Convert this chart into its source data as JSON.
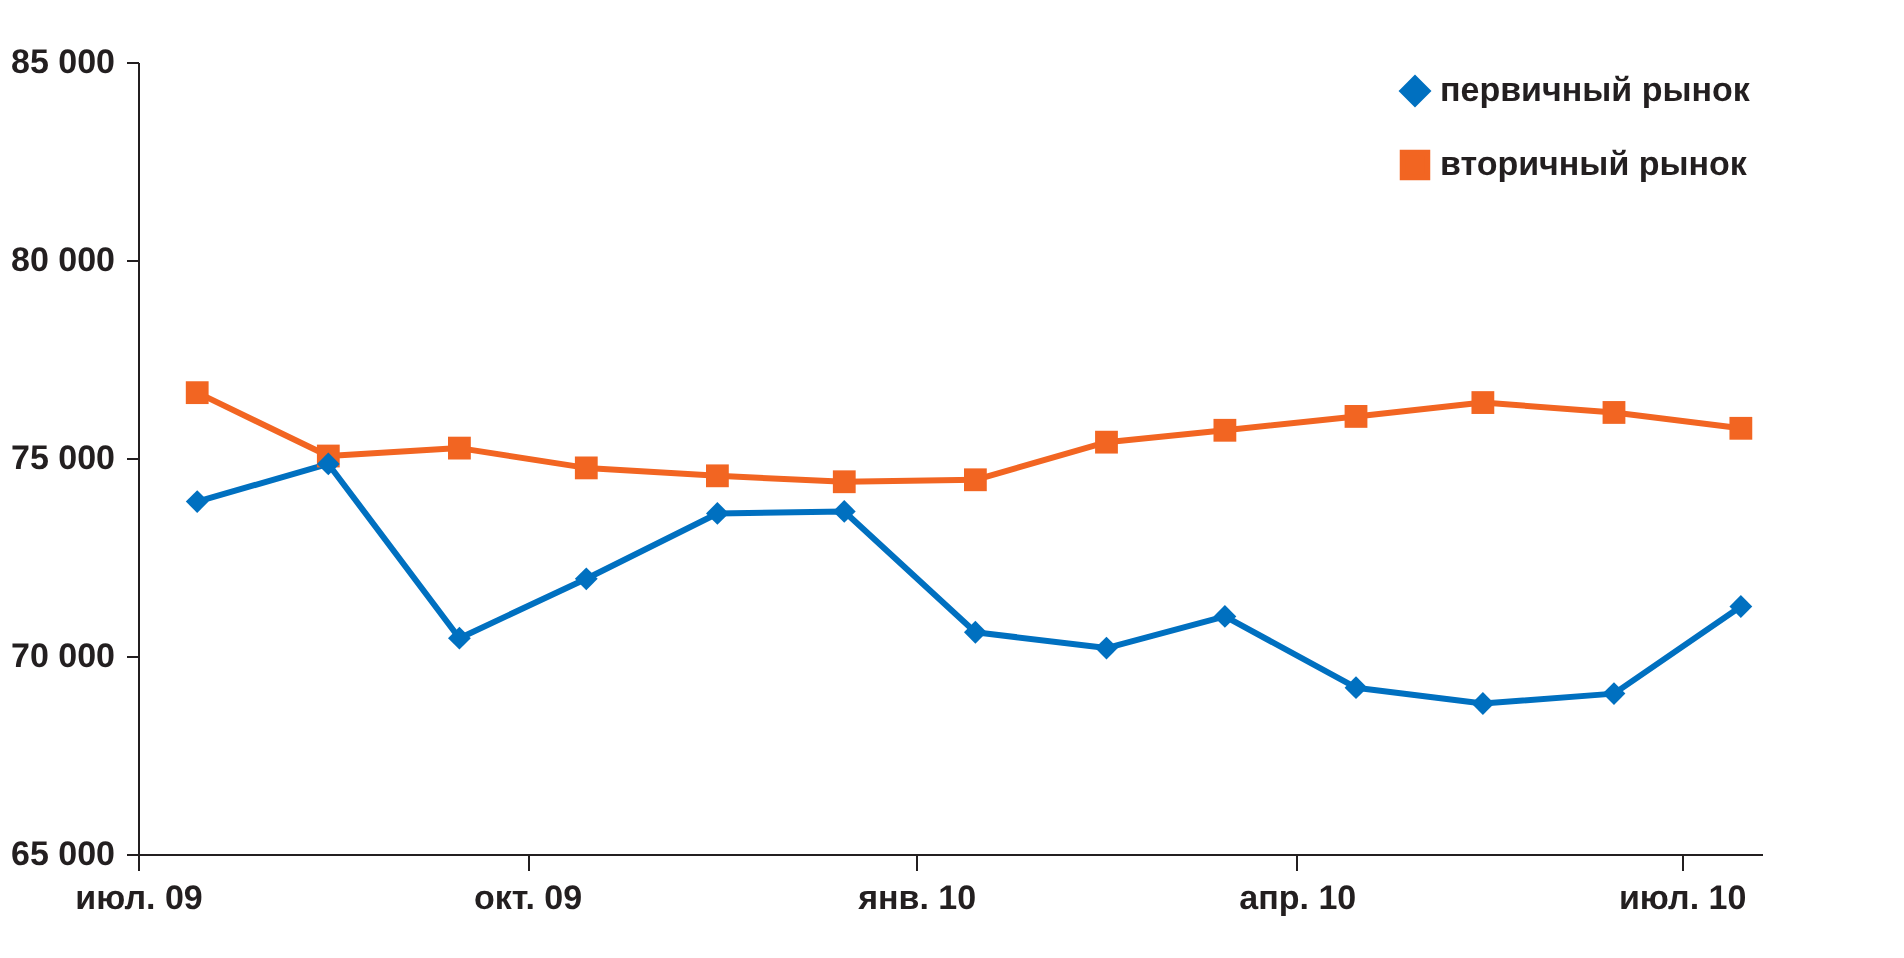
{
  "chart_data": {
    "type": "line",
    "x": [
      "2009-07-15",
      "2009-08-15",
      "2009-09-15",
      "2009-10-15",
      "2009-11-15",
      "2009-12-15",
      "2010-01-15",
      "2010-02-15",
      "2010-03-15",
      "2010-04-15",
      "2010-05-15",
      "2010-06-15",
      "2010-07-15"
    ],
    "series": [
      {
        "name": "первичный рынок",
        "color": "#0070c0",
        "marker": "diamond",
        "values": [
          73900,
          74850,
          70450,
          71950,
          73600,
          73650,
          70600,
          70200,
          71000,
          69200,
          68800,
          69050,
          71250
        ]
      },
      {
        "name": "вторичный рынок",
        "color": "#f26522",
        "marker": "square",
        "values": [
          76650,
          75050,
          75250,
          74750,
          74550,
          74400,
          74450,
          75400,
          75700,
          76050,
          76400,
          76150,
          75750
        ]
      }
    ],
    "ylim": [
      65000,
      85000
    ],
    "yticks": [
      {
        "value": 65000,
        "label": "65 000"
      },
      {
        "value": 70000,
        "label": "70 000"
      },
      {
        "value": 75000,
        "label": "75 000"
      },
      {
        "value": 80000,
        "label": "80 000"
      },
      {
        "value": 85000,
        "label": "85 000"
      }
    ],
    "xlim": [
      "2009-07-01",
      "2010-07-20"
    ],
    "xticks": [
      {
        "value": "2009-07-01",
        "label": "июл. 09"
      },
      {
        "value": "2009-10-01",
        "label": "окт. 09"
      },
      {
        "value": "2010-01-01",
        "label": "янв. 10"
      },
      {
        "value": "2010-04-01",
        "label": "апр. 10"
      },
      {
        "value": "2010-07-01",
        "label": "июл. 10"
      }
    ],
    "grid": false,
    "legend": "top right",
    "line_style": "solid"
  }
}
